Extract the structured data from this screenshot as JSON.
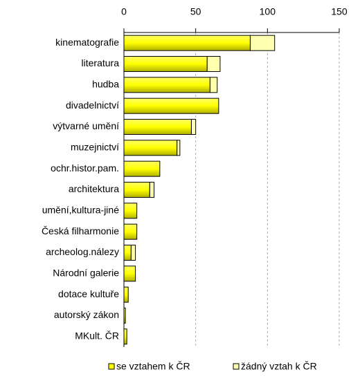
{
  "chart_data": {
    "type": "bar",
    "orientation": "horizontal",
    "stacked": true,
    "categories": [
      "kinematografie",
      "literatura",
      "hudba",
      "divadelnictví",
      "výtvarné umění",
      "muzejnictví",
      "ochr.histor.pam.",
      "architektura",
      "umění,kultura-jiné",
      "Česká filharmonie",
      "archeolog.nálezy",
      "Národní galerie",
      "dotace kultuře",
      "autorský zákon",
      "MKult. ČR"
    ],
    "series": [
      {
        "name": "se vztahem k ČR",
        "color": "#ffff00",
        "values": [
          88,
          58,
          60,
          66,
          47,
          37,
          25,
          18,
          9,
          9,
          5,
          8,
          3,
          1,
          2
        ]
      },
      {
        "name": "žádný vztah k ČR",
        "color": "#ffffb0",
        "values": [
          17,
          9,
          5,
          0,
          3,
          2,
          0,
          3,
          0,
          0,
          3,
          0,
          0,
          0,
          0
        ]
      }
    ],
    "xlim": [
      0,
      150
    ],
    "xticks": [
      0,
      50,
      100,
      150
    ],
    "grid": true,
    "legend": "bottom"
  }
}
